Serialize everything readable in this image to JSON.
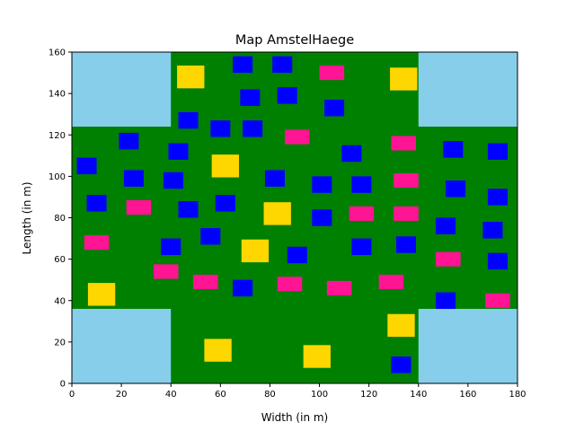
{
  "chart_data": {
    "type": "map",
    "title": "Map AmstelHaege",
    "xlabel": "Width (in m)",
    "ylabel": "Length (in m)",
    "xlim": [
      0,
      180
    ],
    "ylim": [
      0,
      160
    ],
    "xticks": [
      "0",
      "20",
      "40",
      "60",
      "80",
      "100",
      "120",
      "140",
      "160",
      "180"
    ],
    "yticks": [
      "0",
      "20",
      "40",
      "60",
      "80",
      "100",
      "120",
      "140",
      "160"
    ],
    "grid": false,
    "colors": {
      "ground": "#008000",
      "water": "#87CEEB",
      "house_small": "#0000FF",
      "house_medium": "#FF1493",
      "house_large": "#FFD700"
    },
    "water": [
      {
        "x0": 0,
        "y0": 124,
        "x1": 40,
        "y1": 160
      },
      {
        "x0": 140,
        "y0": 124,
        "x1": 180,
        "y1": 160
      },
      {
        "x0": 0,
        "y0": 0,
        "x1": 40,
        "y1": 36
      },
      {
        "x0": 140,
        "y0": 0,
        "x1": 180,
        "y1": 36
      }
    ],
    "houses": {
      "small": [
        [
          69,
          154
        ],
        [
          85,
          154
        ],
        [
          72,
          138
        ],
        [
          87,
          139
        ],
        [
          106,
          133
        ],
        [
          47,
          127
        ],
        [
          60,
          123
        ],
        [
          73,
          123
        ],
        [
          23,
          117
        ],
        [
          43,
          112
        ],
        [
          113,
          111
        ],
        [
          154,
          113
        ],
        [
          172,
          112
        ],
        [
          6,
          105
        ],
        [
          25,
          99
        ],
        [
          41,
          98
        ],
        [
          82,
          99
        ],
        [
          101,
          96
        ],
        [
          117,
          96
        ],
        [
          155,
          94
        ],
        [
          172,
          90
        ],
        [
          10,
          87
        ],
        [
          47,
          84
        ],
        [
          62,
          87
        ],
        [
          101,
          80
        ],
        [
          151,
          76
        ],
        [
          170,
          74
        ],
        [
          40,
          66
        ],
        [
          56,
          71
        ],
        [
          117,
          66
        ],
        [
          135,
          67
        ],
        [
          91,
          62
        ],
        [
          172,
          59
        ],
        [
          69,
          46
        ],
        [
          151,
          40
        ],
        [
          133,
          9
        ]
      ],
      "medium": [
        [
          105,
          150
        ],
        [
          91,
          119
        ],
        [
          134,
          116
        ],
        [
          135,
          98
        ],
        [
          27,
          85
        ],
        [
          117,
          82
        ],
        [
          135,
          82
        ],
        [
          10,
          68
        ],
        [
          152,
          60
        ],
        [
          38,
          54
        ],
        [
          54,
          49
        ],
        [
          88,
          48
        ],
        [
          108,
          46
        ],
        [
          129,
          49
        ],
        [
          172,
          40
        ]
      ],
      "large": [
        [
          48,
          148
        ],
        [
          134,
          147
        ],
        [
          62,
          105
        ],
        [
          83,
          82
        ],
        [
          74,
          64
        ],
        [
          12,
          43
        ],
        [
          133,
          28
        ],
        [
          59,
          16
        ],
        [
          99,
          13
        ]
      ]
    }
  }
}
